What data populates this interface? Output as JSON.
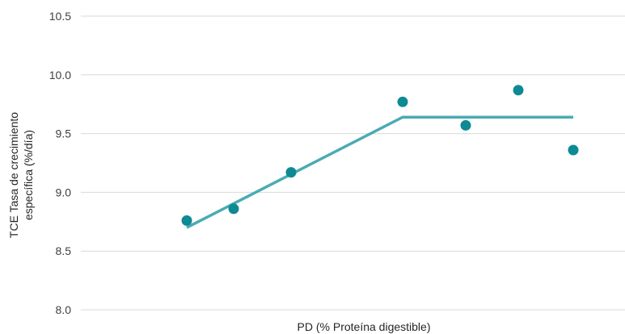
{
  "chart_data": {
    "type": "scatter",
    "xlabel": "PD (% Proteína digestible)",
    "ylabel_lines": [
      "TCE Tasa de crecimiento",
      "específica (%/día)"
    ],
    "ylim": [
      8.0,
      10.5
    ],
    "yticks": [
      "8.0",
      "8.5",
      "9.0",
      "9.5",
      "10.0",
      "10.5"
    ],
    "grid": true,
    "colors": {
      "points": "#0e8a94",
      "fit_line": "#4aabb3",
      "grid": "#d9d9d9"
    },
    "series": [
      {
        "type": "scatter",
        "x": [
          1,
          2,
          3,
          4,
          5,
          6,
          7
        ],
        "y": [
          8.76,
          8.86,
          9.17,
          9.77,
          9.57,
          9.87,
          9.36
        ]
      },
      {
        "type": "line",
        "x": [
          1,
          4,
          7
        ],
        "y": [
          8.7,
          9.64,
          9.64
        ]
      }
    ]
  }
}
